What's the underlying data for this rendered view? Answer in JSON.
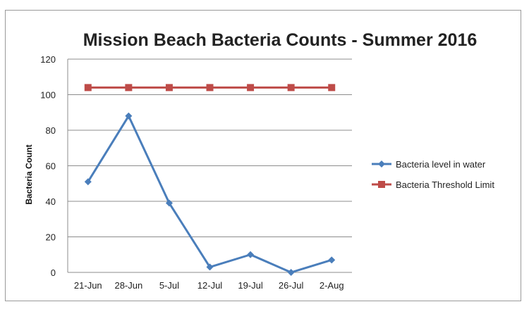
{
  "chart_data": {
    "type": "line",
    "title": "Mission Beach Bacteria Counts - Summer 2016",
    "xlabel": "",
    "ylabel": "Bacteria Count",
    "categories": [
      "21-Jun",
      "28-Jun",
      "5-Jul",
      "12-Jul",
      "19-Jul",
      "26-Jul",
      "2-Aug"
    ],
    "ylim": [
      0,
      120
    ],
    "yticks": [
      0,
      20,
      40,
      60,
      80,
      100,
      120
    ],
    "grid": true,
    "legend_position": "right",
    "series": [
      {
        "name": "Bacteria level in water",
        "values": [
          51,
          88,
          39,
          3,
          10,
          0,
          7
        ],
        "color": "#4a7ebb",
        "marker": "diamond"
      },
      {
        "name": "Bacteria Threshold Limit",
        "values": [
          104,
          104,
          104,
          104,
          104,
          104,
          104
        ],
        "color": "#be4b48",
        "marker": "square"
      }
    ]
  }
}
